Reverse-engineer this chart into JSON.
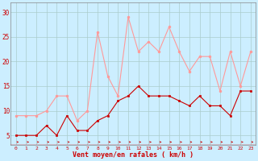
{
  "x": [
    0,
    1,
    2,
    3,
    4,
    5,
    6,
    7,
    8,
    9,
    10,
    11,
    12,
    13,
    14,
    15,
    16,
    17,
    18,
    19,
    20,
    21,
    22,
    23
  ],
  "wind_avg": [
    5,
    5,
    5,
    7,
    5,
    9,
    6,
    6,
    8,
    9,
    12,
    13,
    15,
    13,
    13,
    13,
    12,
    11,
    13,
    11,
    11,
    9,
    14,
    14
  ],
  "wind_gust": [
    9,
    9,
    9,
    10,
    13,
    13,
    8,
    10,
    26,
    17,
    13,
    29,
    22,
    24,
    22,
    27,
    22,
    18,
    21,
    21,
    14,
    22,
    15,
    22
  ],
  "avg_color": "#cc0000",
  "gust_color": "#ff9999",
  "bg_color": "#cceeff",
  "grid_color": "#aacccc",
  "xlabel": "Vent moyen/en rafales ( km/h )",
  "xlabel_color": "#cc0000",
  "ylabel_ticks": [
    5,
    10,
    15,
    20,
    25,
    30
  ],
  "xlim": [
    -0.5,
    23.5
  ],
  "ylim": [
    3,
    32
  ]
}
